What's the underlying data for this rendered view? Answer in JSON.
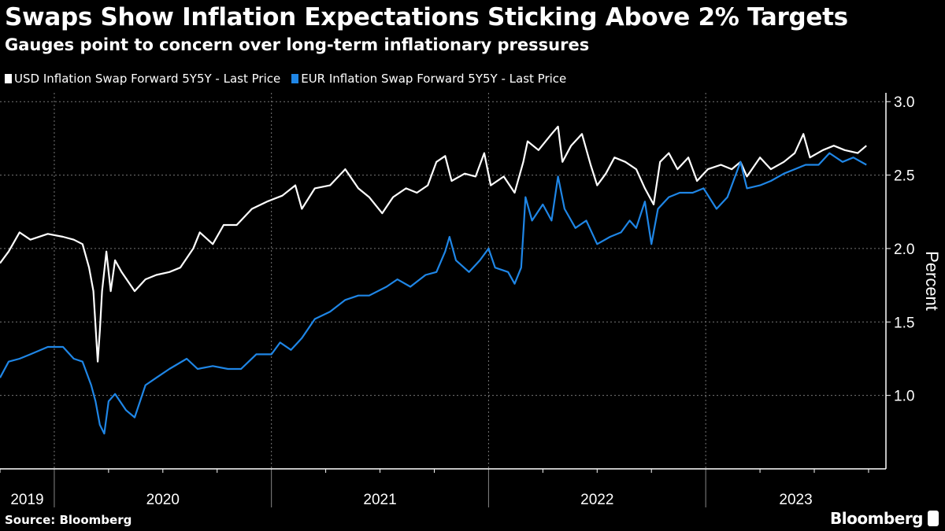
{
  "chart_data": {
    "type": "line",
    "title": "Swaps Show Inflation Expectations Sticking Above 2% Targets",
    "subtitle": "Gauges point to concern over long-term inflationary pressures",
    "xlabel": "",
    "ylabel": "Percent",
    "xlim": [
      2019.75,
      2023.83
    ],
    "ylim": [
      0.5,
      3.06
    ],
    "yticks": [
      "1.0",
      "1.5",
      "2.0",
      "2.5",
      "3.0"
    ],
    "ytick_values": [
      1.0,
      1.5,
      2.0,
      2.5,
      3.0
    ],
    "xtick_labels": [
      "2019",
      "2020",
      "2021",
      "2022",
      "2023"
    ],
    "grid": true,
    "legend_position": "top-left",
    "series": [
      {
        "name": "USD Inflation Swap Forward 5Y5Y - Last Price",
        "color": "#ffffff",
        "points": [
          [
            2019.75,
            1.9
          ],
          [
            2019.79,
            1.98
          ],
          [
            2019.84,
            2.11
          ],
          [
            2019.89,
            2.06
          ],
          [
            2019.97,
            2.1
          ],
          [
            2020.04,
            2.08
          ],
          [
            2020.09,
            2.06
          ],
          [
            2020.13,
            2.03
          ],
          [
            2020.16,
            1.87
          ],
          [
            2020.18,
            1.71
          ],
          [
            2020.2,
            1.23
          ],
          [
            2020.21,
            1.44
          ],
          [
            2020.22,
            1.71
          ],
          [
            2020.24,
            1.98
          ],
          [
            2020.26,
            1.71
          ],
          [
            2020.28,
            1.92
          ],
          [
            2020.31,
            1.84
          ],
          [
            2020.37,
            1.71
          ],
          [
            2020.42,
            1.79
          ],
          [
            2020.47,
            1.82
          ],
          [
            2020.53,
            1.84
          ],
          [
            2020.58,
            1.87
          ],
          [
            2020.64,
            2.0
          ],
          [
            2020.67,
            2.11
          ],
          [
            2020.73,
            2.03
          ],
          [
            2020.78,
            2.16
          ],
          [
            2020.84,
            2.16
          ],
          [
            2020.91,
            2.27
          ],
          [
            2020.98,
            2.32
          ],
          [
            2021.05,
            2.36
          ],
          [
            2021.11,
            2.43
          ],
          [
            2021.14,
            2.27
          ],
          [
            2021.2,
            2.41
          ],
          [
            2021.27,
            2.43
          ],
          [
            2021.34,
            2.54
          ],
          [
            2021.4,
            2.41
          ],
          [
            2021.45,
            2.35
          ],
          [
            2021.51,
            2.24
          ],
          [
            2021.56,
            2.35
          ],
          [
            2021.62,
            2.41
          ],
          [
            2021.67,
            2.38
          ],
          [
            2021.72,
            2.43
          ],
          [
            2021.76,
            2.59
          ],
          [
            2021.8,
            2.63
          ],
          [
            2021.83,
            2.46
          ],
          [
            2021.89,
            2.51
          ],
          [
            2021.94,
            2.49
          ],
          [
            2021.98,
            2.65
          ],
          [
            2022.01,
            2.43
          ],
          [
            2022.07,
            2.49
          ],
          [
            2022.12,
            2.38
          ],
          [
            2022.16,
            2.59
          ],
          [
            2022.18,
            2.73
          ],
          [
            2022.23,
            2.67
          ],
          [
            2022.29,
            2.78
          ],
          [
            2022.32,
            2.83
          ],
          [
            2022.34,
            2.59
          ],
          [
            2022.38,
            2.7
          ],
          [
            2022.43,
            2.78
          ],
          [
            2022.47,
            2.57
          ],
          [
            2022.5,
            2.43
          ],
          [
            2022.54,
            2.51
          ],
          [
            2022.58,
            2.62
          ],
          [
            2022.63,
            2.59
          ],
          [
            2022.68,
            2.54
          ],
          [
            2022.72,
            2.41
          ],
          [
            2022.76,
            2.3
          ],
          [
            2022.79,
            2.59
          ],
          [
            2022.83,
            2.65
          ],
          [
            2022.87,
            2.54
          ],
          [
            2022.92,
            2.62
          ],
          [
            2022.96,
            2.46
          ],
          [
            2023.01,
            2.54
          ],
          [
            2023.07,
            2.57
          ],
          [
            2023.12,
            2.54
          ],
          [
            2023.16,
            2.59
          ],
          [
            2023.19,
            2.49
          ],
          [
            2023.25,
            2.62
          ],
          [
            2023.3,
            2.54
          ],
          [
            2023.36,
            2.59
          ],
          [
            2023.41,
            2.65
          ],
          [
            2023.45,
            2.78
          ],
          [
            2023.48,
            2.62
          ],
          [
            2023.54,
            2.67
          ],
          [
            2023.59,
            2.7
          ],
          [
            2023.64,
            2.67
          ],
          [
            2023.7,
            2.65
          ],
          [
            2023.74,
            2.7
          ]
        ]
      },
      {
        "name": "EUR Inflation Swap Forward 5Y5Y - Last Price",
        "color": "#1f86e6",
        "points": [
          [
            2019.75,
            1.12
          ],
          [
            2019.79,
            1.23
          ],
          [
            2019.84,
            1.25
          ],
          [
            2019.89,
            1.28
          ],
          [
            2019.97,
            1.33
          ],
          [
            2020.04,
            1.33
          ],
          [
            2020.09,
            1.25
          ],
          [
            2020.13,
            1.23
          ],
          [
            2020.17,
            1.07
          ],
          [
            2020.19,
            0.96
          ],
          [
            2020.21,
            0.8
          ],
          [
            2020.23,
            0.74
          ],
          [
            2020.25,
            0.96
          ],
          [
            2020.28,
            1.01
          ],
          [
            2020.33,
            0.9
          ],
          [
            2020.37,
            0.85
          ],
          [
            2020.42,
            1.07
          ],
          [
            2020.47,
            1.12
          ],
          [
            2020.53,
            1.18
          ],
          [
            2020.61,
            1.25
          ],
          [
            2020.66,
            1.18
          ],
          [
            2020.73,
            1.2
          ],
          [
            2020.8,
            1.18
          ],
          [
            2020.86,
            1.18
          ],
          [
            2020.93,
            1.28
          ],
          [
            2021.0,
            1.28
          ],
          [
            2021.04,
            1.36
          ],
          [
            2021.09,
            1.31
          ],
          [
            2021.14,
            1.39
          ],
          [
            2021.2,
            1.52
          ],
          [
            2021.27,
            1.57
          ],
          [
            2021.34,
            1.65
          ],
          [
            2021.4,
            1.68
          ],
          [
            2021.45,
            1.68
          ],
          [
            2021.53,
            1.74
          ],
          [
            2021.58,
            1.79
          ],
          [
            2021.64,
            1.74
          ],
          [
            2021.71,
            1.82
          ],
          [
            2021.76,
            1.84
          ],
          [
            2021.8,
            1.98
          ],
          [
            2021.82,
            2.08
          ],
          [
            2021.85,
            1.92
          ],
          [
            2021.91,
            1.84
          ],
          [
            2021.96,
            1.92
          ],
          [
            2022.0,
            2.0
          ],
          [
            2022.03,
            1.87
          ],
          [
            2022.09,
            1.84
          ],
          [
            2022.12,
            1.76
          ],
          [
            2022.15,
            1.87
          ],
          [
            2022.17,
            2.35
          ],
          [
            2022.2,
            2.19
          ],
          [
            2022.25,
            2.3
          ],
          [
            2022.29,
            2.19
          ],
          [
            2022.32,
            2.49
          ],
          [
            2022.35,
            2.27
          ],
          [
            2022.4,
            2.14
          ],
          [
            2022.45,
            2.19
          ],
          [
            2022.5,
            2.03
          ],
          [
            2022.56,
            2.08
          ],
          [
            2022.61,
            2.11
          ],
          [
            2022.65,
            2.19
          ],
          [
            2022.68,
            2.14
          ],
          [
            2022.72,
            2.32
          ],
          [
            2022.75,
            2.03
          ],
          [
            2022.78,
            2.27
          ],
          [
            2022.83,
            2.35
          ],
          [
            2022.88,
            2.38
          ],
          [
            2022.94,
            2.38
          ],
          [
            2022.99,
            2.41
          ],
          [
            2023.05,
            2.27
          ],
          [
            2023.1,
            2.35
          ],
          [
            2023.16,
            2.59
          ],
          [
            2023.19,
            2.41
          ],
          [
            2023.25,
            2.43
          ],
          [
            2023.3,
            2.46
          ],
          [
            2023.36,
            2.51
          ],
          [
            2023.41,
            2.54
          ],
          [
            2023.46,
            2.57
          ],
          [
            2023.52,
            2.57
          ],
          [
            2023.57,
            2.65
          ],
          [
            2023.63,
            2.59
          ],
          [
            2023.68,
            2.62
          ],
          [
            2023.74,
            2.57
          ]
        ]
      }
    ]
  },
  "source": "Source: Bloomberg",
  "brand": "Bloomberg"
}
